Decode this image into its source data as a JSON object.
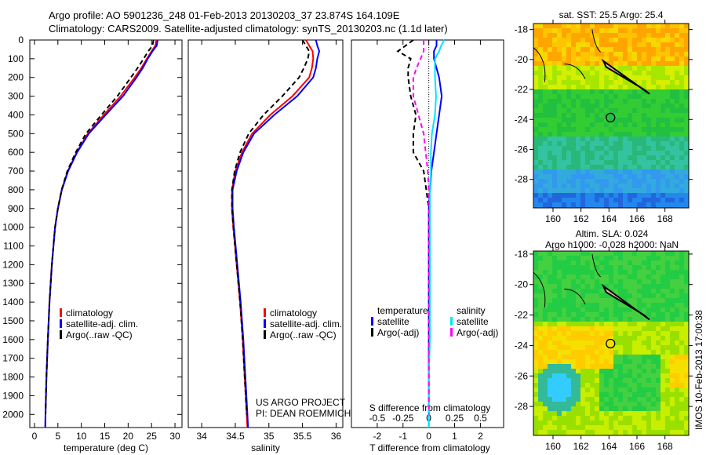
{
  "title_line1": "Argo profile: AO 5901236_248 01-Feb-2013 20130203_37 23.874S 164.109E",
  "title_line2": "Climatology: CARS2009. Satellite-adjusted climatology: synTS_20130203.nc (1.1d later)",
  "colors": {
    "climatology": "#ff0000",
    "satellite": "#0000ff",
    "argo": "#000000",
    "sal_satellite": "#00e5ff",
    "sal_argo": "#ff00ff"
  },
  "chart_data": [
    {
      "type": "line",
      "xlabel": "temperature (deg C)",
      "ylabel": "",
      "xlim": [
        -1,
        31.5
      ],
      "ylim": [
        2070,
        0
      ],
      "xticks": [
        0,
        5,
        10,
        15,
        20,
        25,
        30
      ],
      "yticks": [
        0,
        100,
        200,
        300,
        400,
        500,
        600,
        700,
        800,
        900,
        1000,
        1100,
        1200,
        1300,
        1400,
        1500,
        1600,
        1700,
        1800,
        1900,
        2000
      ],
      "legend": [
        "climatology",
        "satellite-adj. clim.",
        "Argo(..raw -QC)"
      ],
      "depth": [
        0,
        30,
        60,
        100,
        150,
        200,
        300,
        400,
        500,
        600,
        700,
        800,
        900,
        1000,
        1200,
        1400,
        1600,
        1800,
        2000,
        2070
      ],
      "series": [
        {
          "name": "climatology",
          "values": [
            26,
            25.8,
            25,
            24,
            22.8,
            21.4,
            18.4,
            14.8,
            11.4,
            9.0,
            7.1,
            5.8,
            5.0,
            4.4,
            3.7,
            3.2,
            2.85,
            2.55,
            2.35,
            2.3
          ]
        },
        {
          "name": "satellite-adj. clim.",
          "values": [
            26.3,
            26.1,
            25.2,
            24.2,
            23.1,
            21.8,
            18.9,
            15.2,
            11.6,
            9.1,
            7.2,
            5.85,
            5.0,
            4.4,
            3.7,
            3.2,
            2.85,
            2.55,
            2.35,
            2.3
          ]
        },
        {
          "name": "Argo",
          "values": [
            25.4,
            25.2,
            24.3,
            23.3,
            22.0,
            20.6,
            17.7,
            14.3,
            11.0,
            8.8,
            7.0,
            5.8,
            5.0,
            4.4,
            3.7,
            3.2,
            2.85,
            2.55,
            2.35,
            null
          ]
        }
      ]
    },
    {
      "type": "line",
      "xlabel": "salinity",
      "xlim": [
        33.8,
        36.1
      ],
      "ylim": [
        2070,
        0
      ],
      "xticks": [
        34,
        34.5,
        35,
        35.5,
        36
      ],
      "legend": [
        "climatology",
        "satellite-adj. clim.",
        "Argo(..raw -QC)"
      ],
      "annotation": [
        "US ARGO PROJECT",
        "PI: DEAN ROEMMICH"
      ],
      "depth": [
        0,
        30,
        60,
        100,
        150,
        200,
        300,
        400,
        500,
        600,
        700,
        800,
        900,
        1000,
        1200,
        1400,
        1600,
        1800,
        2000,
        2070
      ],
      "series": [
        {
          "name": "climatology",
          "values": [
            35.55,
            35.6,
            35.65,
            35.66,
            35.64,
            35.6,
            35.35,
            35.02,
            34.75,
            34.6,
            34.5,
            34.45,
            34.45,
            34.47,
            34.52,
            34.57,
            34.61,
            34.64,
            34.67,
            34.68
          ]
        },
        {
          "name": "satellite-adj. clim.",
          "values": [
            35.7,
            35.72,
            35.75,
            35.72,
            35.7,
            35.66,
            35.42,
            35.08,
            34.78,
            34.62,
            34.52,
            34.46,
            34.46,
            34.48,
            34.53,
            34.58,
            34.62,
            34.65,
            34.68,
            34.69
          ]
        },
        {
          "name": "Argo",
          "values": [
            35.5,
            35.55,
            35.6,
            35.58,
            35.52,
            35.45,
            35.2,
            34.92,
            34.7,
            34.57,
            34.49,
            34.45,
            34.45,
            34.47,
            34.52,
            34.57,
            34.61,
            34.64,
            34.67,
            null
          ]
        }
      ]
    },
    {
      "type": "line",
      "xlabel": "T difference from climatology",
      "x2label": "S difference from climatology",
      "xlim": [
        -3,
        2.9
      ],
      "x2lim": [
        -0.75,
        0.725
      ],
      "ylim": [
        2070,
        0
      ],
      "xticks": [
        -2,
        -1,
        0,
        1,
        2
      ],
      "x2ticks": [
        -0.5,
        -0.25,
        0,
        0.25,
        0.5
      ],
      "legend_temperature_title": "temperature",
      "legend_salinity_title": "salinity",
      "legend": [
        "satellite",
        "Argo(-adj)",
        "satellite",
        "Argo(-adj)"
      ],
      "depth": [
        0,
        30,
        60,
        100,
        150,
        200,
        300,
        400,
        500,
        600,
        700,
        800,
        900,
        1000,
        1200,
        1400,
        1600,
        1800,
        2000,
        2070
      ],
      "series": [
        {
          "name": "T satellite",
          "axis": "T",
          "values": [
            0.3,
            0.3,
            0.2,
            0.2,
            0.3,
            0.4,
            0.5,
            0.4,
            0.3,
            0.2,
            0.1,
            0.05,
            0,
            0,
            0,
            0,
            0,
            0,
            0,
            0
          ]
        },
        {
          "name": "T Argo(-adj)",
          "axis": "T",
          "values": [
            -0.6,
            -0.9,
            -1.2,
            -0.7,
            -0.8,
            -0.8,
            -0.7,
            -0.5,
            -0.6,
            -0.6,
            -0.2,
            -0.1,
            0,
            0,
            0,
            0,
            0,
            0,
            0,
            null
          ]
        },
        {
          "name": "S satellite",
          "axis": "S",
          "values": [
            0.15,
            0.12,
            0.1,
            0.06,
            0.06,
            0.06,
            0.07,
            0.06,
            0.03,
            0.02,
            0.02,
            0.01,
            0.01,
            0.01,
            0.01,
            0.01,
            0.01,
            0,
            0,
            0
          ]
        },
        {
          "name": "S Argo(-adj)",
          "axis": "S",
          "values": [
            -0.05,
            -0.05,
            -0.05,
            -0.08,
            -0.12,
            -0.15,
            -0.15,
            -0.1,
            -0.05,
            -0.03,
            -0.01,
            0,
            0,
            0,
            0,
            0,
            0,
            0,
            0,
            null
          ]
        }
      ]
    },
    {
      "type": "heatmap",
      "title": "sat. SST: 25.5 Argo: 25.4",
      "xticks": [
        160,
        162,
        164,
        166,
        168
      ],
      "yticks": [
        -18,
        -20,
        -22,
        -24,
        -26,
        -28
      ],
      "xlim": [
        158.6,
        169.7
      ],
      "ylim": [
        -29.9,
        -17.6
      ],
      "marker": {
        "lon": 164.109,
        "lat": -23.874
      }
    },
    {
      "type": "heatmap",
      "title_line1": "Altim. SLA: 0.024",
      "title_line2": "Argo h1000: -0.028 h2000: NaN",
      "xticks": [
        160,
        162,
        164,
        166,
        168
      ],
      "yticks": [
        -18,
        -20,
        -22,
        -24,
        -26,
        -28
      ],
      "xlim": [
        158.6,
        169.7
      ],
      "ylim": [
        -29.9,
        -17.8
      ],
      "marker": {
        "lon": 164.109,
        "lat": -23.874
      },
      "credit": "IMOS 10-Feb-2013 17:00:38"
    }
  ]
}
